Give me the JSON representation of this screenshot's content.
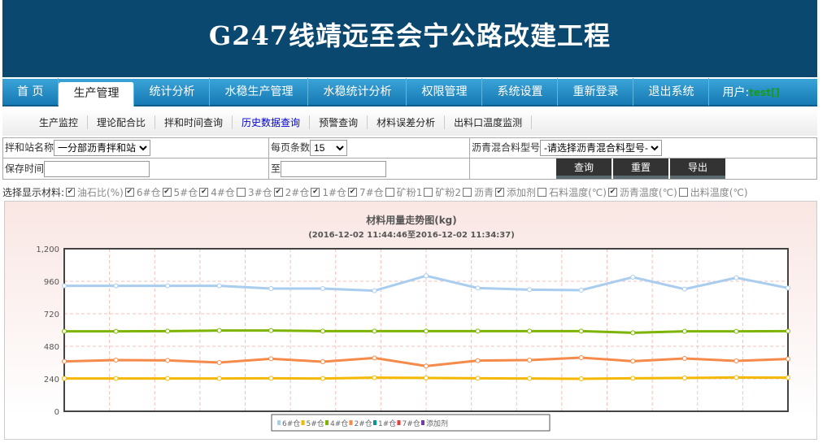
{
  "header": {
    "title": "G247线靖远至会宁公路改建工程"
  },
  "nav": {
    "items": [
      "首 页",
      "生产管理",
      "统计分析",
      "水稳生产管理",
      "水稳统计分析",
      "权限管理",
      "系统设置",
      "重新登录",
      "退出系统"
    ],
    "active": 1,
    "user_label": "用户:",
    "user_name": "test[]"
  },
  "subnav": {
    "items": [
      "生产监控",
      "理论配合比",
      "拌和时间查询",
      "历史数据查询",
      "预警查询",
      "材料误差分析",
      "出料口温度监测"
    ],
    "active": 3
  },
  "filters": {
    "station_label": "拌和站名称",
    "station_value": "一分部沥青拌和站",
    "page_size_label": "每页条数",
    "page_size_value": "15",
    "mix_label": "沥青混合料型号",
    "mix_value": "-请选择沥青混合料型号-",
    "save_time_label": "保存时间",
    "to_label": "至",
    "save_time_from": "",
    "save_time_to": "",
    "query": "查询",
    "reset": "重置",
    "export": "导出"
  },
  "materials": {
    "label": "选择显示材料:",
    "items": [
      {
        "name": "油石比(%)",
        "checked": true
      },
      {
        "name": "6#仓",
        "checked": true
      },
      {
        "name": "5#仓",
        "checked": true
      },
      {
        "name": "4#仓",
        "checked": true
      },
      {
        "name": "3#仓",
        "checked": false
      },
      {
        "name": "2#仓",
        "checked": true
      },
      {
        "name": "1#仓",
        "checked": true
      },
      {
        "name": "7#仓",
        "checked": true
      },
      {
        "name": "矿粉1",
        "checked": false
      },
      {
        "name": "矿粉2",
        "checked": false
      },
      {
        "name": "沥青",
        "checked": false
      },
      {
        "name": "添加剂",
        "checked": true
      },
      {
        "name": "石料温度(℃)",
        "checked": false
      },
      {
        "name": "沥青温度(℃)",
        "checked": true
      },
      {
        "name": "出料温度(℃)",
        "checked": false
      }
    ]
  },
  "chart_data": {
    "type": "line",
    "title": "材料用量走势图(kg)",
    "subtitle": "(2016-12-02 11:44:46至2016-12-02 11:34:37)",
    "ylim": [
      0,
      1200
    ],
    "yticks": [
      "0",
      "240",
      "480",
      "720",
      "960",
      "1,200"
    ],
    "grid": true,
    "legend_placement": "bottom",
    "series": [
      {
        "name": "6#仓",
        "color": "#a9cdef",
        "values": [
          926,
          926,
          926,
          926,
          906,
          906,
          890,
          1000,
          910,
          898,
          894,
          990,
          902,
          986,
          910
        ]
      },
      {
        "name": "5#仓",
        "color": "#f5b800",
        "values": [
          242,
          242,
          242,
          242,
          244,
          242,
          248,
          246,
          244,
          242,
          240,
          244,
          246,
          250,
          248
        ]
      },
      {
        "name": "4#仓",
        "color": "#7cb400",
        "values": [
          590,
          590,
          592,
          596,
          596,
          592,
          592,
          592,
          592,
          592,
          592,
          580,
          590,
          590,
          592
        ]
      },
      {
        "name": "2#仓",
        "color": "#f58a4a",
        "values": [
          368,
          378,
          376,
          360,
          388,
          366,
          394,
          334,
          374,
          378,
          396,
          370,
          390,
          372,
          386
        ]
      },
      {
        "name": "1#仓",
        "color": "#009a8a",
        "values": []
      },
      {
        "name": "7#仓",
        "color": "#e04040",
        "values": []
      },
      {
        "name": "添加剂",
        "color": "#7a3a9a",
        "values": []
      }
    ]
  }
}
